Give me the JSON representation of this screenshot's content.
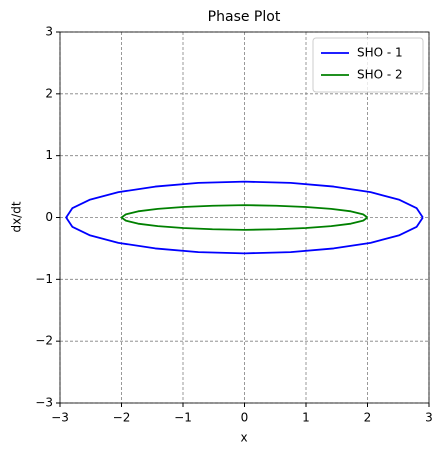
{
  "chart_data": {
    "type": "line",
    "title": "Phase Plot",
    "x_label": "x",
    "y_label": "dx/dt",
    "series": [
      {
        "name": "SHO - 1",
        "color": "#0000ff",
        "x": [
          2.9,
          2.8,
          2.51,
          2.05,
          1.45,
          0.75,
          0,
          -0.75,
          -1.45,
          -2.05,
          -2.51,
          -2.8,
          -2.9,
          -2.8,
          -2.51,
          -2.05,
          -1.45,
          -0.75,
          0,
          0.75,
          1.45,
          2.05,
          2.51,
          2.8,
          2.9
        ],
        "values": [
          0,
          0.15,
          0.29,
          0.41,
          0.5,
          0.56,
          0.58,
          0.56,
          0.5,
          0.41,
          0.29,
          0.15,
          0,
          -0.15,
          -0.29,
          -0.41,
          -0.5,
          -0.56,
          -0.58,
          -0.56,
          -0.5,
          -0.41,
          -0.29,
          -0.15,
          0
        ]
      },
      {
        "name": "SHO - 2",
        "color": "#008000",
        "x": [
          2,
          1.93,
          1.73,
          1.41,
          1,
          0.52,
          0,
          -0.52,
          -1,
          -1.41,
          -1.73,
          -1.93,
          -2,
          -1.93,
          -1.73,
          -1.41,
          -1,
          -0.52,
          0,
          0.52,
          1,
          1.41,
          1.73,
          1.93,
          2
        ],
        "values": [
          0,
          0.05,
          0.1,
          0.14,
          0.17,
          0.19,
          0.2,
          0.19,
          0.17,
          0.14,
          0.1,
          0.05,
          0,
          -0.05,
          -0.1,
          -0.14,
          -0.17,
          -0.19,
          -0.2,
          -0.19,
          -0.17,
          -0.14,
          -0.1,
          -0.05,
          0
        ]
      }
    ],
    "xlim": [
      -3,
      3
    ],
    "ylim": [
      -3,
      3
    ],
    "xticks": [
      {
        "value": -3,
        "label": "−3"
      },
      {
        "value": -2,
        "label": "−2"
      },
      {
        "value": -1,
        "label": "−1"
      },
      0,
      1,
      2,
      3
    ],
    "yticks": [
      {
        "value": -3,
        "label": "−3"
      },
      {
        "value": -2,
        "label": "−2"
      },
      {
        "value": -1,
        "label": "−1"
      },
      0,
      1,
      2,
      3
    ],
    "grid": true,
    "legend_location": "upper right"
  }
}
